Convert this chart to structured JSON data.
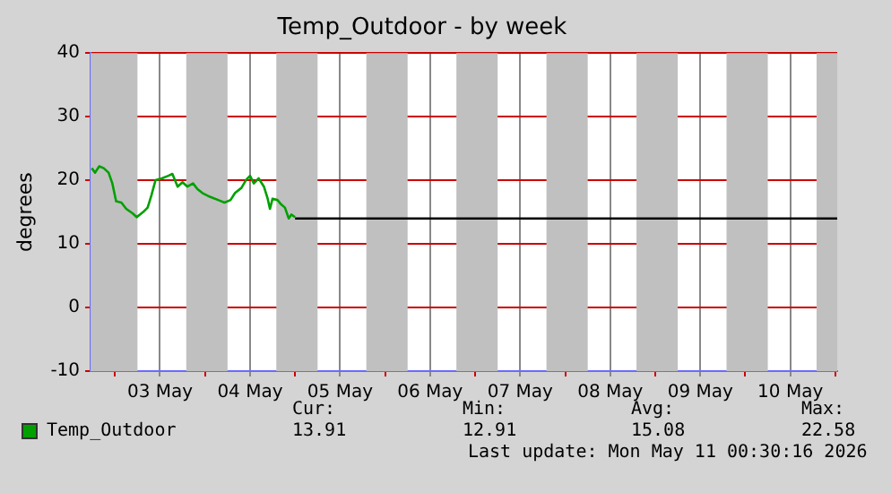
{
  "chart_data": {
    "type": "line",
    "title": "Temp_Outdoor - by week",
    "ylabel": "degrees",
    "x": [
      "2026-05-02T17:48",
      "2026-05-02T18:42",
      "2026-05-02T19:48",
      "2026-05-02T21:00",
      "2026-05-02T22:18",
      "2026-05-02T23:18",
      "2026-05-03T00:18",
      "2026-05-03T01:42",
      "2026-05-03T03:00",
      "2026-05-03T04:42",
      "2026-05-03T05:48",
      "2026-05-03T07:30",
      "2026-05-03T08:42",
      "2026-05-03T09:42",
      "2026-05-03T10:48",
      "2026-05-03T12:30",
      "2026-05-03T14:12",
      "2026-05-03T15:18",
      "2026-05-03T16:42",
      "2026-05-03T18:00",
      "2026-05-03T19:18",
      "2026-05-03T20:48",
      "2026-05-03T22:00",
      "2026-05-03T23:18",
      "2026-05-04T01:18",
      "2026-05-04T03:30",
      "2026-05-04T05:12",
      "2026-05-04T06:48",
      "2026-05-04T08:00",
      "2026-05-04T09:42",
      "2026-05-04T11:00",
      "2026-05-04T12:00",
      "2026-05-04T13:00",
      "2026-05-04T14:18",
      "2026-05-04T15:42",
      "2026-05-04T16:42",
      "2026-05-04T17:18",
      "2026-05-04T18:00",
      "2026-05-04T19:18",
      "2026-05-04T20:18",
      "2026-05-04T21:18",
      "2026-05-04T22:18",
      "2026-05-04T23:00",
      "2026-05-05T00:00"
    ],
    "series": [
      {
        "name": "Temp_Outdoor",
        "color": "#00a000",
        "values": [
          21.9,
          21.2,
          22.2,
          21.9,
          21.2,
          19.5,
          16.7,
          16.5,
          15.5,
          14.8,
          14.2,
          15.0,
          15.7,
          17.6,
          20.0,
          20.3,
          20.7,
          21.0,
          19.0,
          19.7,
          19.0,
          19.5,
          18.6,
          18.0,
          17.4,
          16.9,
          16.5,
          16.9,
          18.0,
          18.8,
          20.1,
          20.7,
          19.5,
          20.3,
          19.0,
          17.1,
          15.5,
          17.1,
          16.9,
          16.2,
          15.7,
          14.0,
          14.6,
          14.2
        ]
      },
      {
        "color": "#000000",
        "x": [
          "2026-05-05T00:00",
          "2026-05-11T00:30"
        ],
        "values": [
          14,
          14
        ]
      }
    ],
    "xlim": [
      "2026-05-02T17:30",
      "2026-05-11T00:30"
    ],
    "xticks": [
      {
        "value": "2026-05-03T00:00",
        "label": null
      },
      {
        "value": "2026-05-03T12:00",
        "label": "03 May"
      },
      {
        "value": "2026-05-04T00:00",
        "label": null
      },
      {
        "value": "2026-05-04T12:00",
        "label": "04 May"
      },
      {
        "value": "2026-05-05T00:00",
        "label": null
      },
      {
        "value": "2026-05-05T12:00",
        "label": "05 May"
      },
      {
        "value": "2026-05-06T00:00",
        "label": null
      },
      {
        "value": "2026-05-06T12:00",
        "label": "06 May"
      },
      {
        "value": "2026-05-07T00:00",
        "label": null
      },
      {
        "value": "2026-05-07T12:00",
        "label": "07 May"
      },
      {
        "value": "2026-05-08T00:00",
        "label": null
      },
      {
        "value": "2026-05-08T12:00",
        "label": "08 May"
      },
      {
        "value": "2026-05-09T00:00",
        "label": null
      },
      {
        "value": "2026-05-09T12:00",
        "label": "09 May"
      },
      {
        "value": "2026-05-10T00:00",
        "label": null
      },
      {
        "value": "2026-05-10T12:00",
        "label": "10 May"
      },
      {
        "value": "2026-05-11T00:00",
        "label": null
      }
    ],
    "ylim": [
      -10,
      40
    ],
    "yticks": [
      -10,
      0,
      10,
      20,
      30,
      40
    ],
    "bands": [
      {
        "axis": "x",
        "from": "2026-05-02T17:30",
        "to": "2026-05-03T06:00",
        "color": "#c0c0c0"
      },
      {
        "axis": "x",
        "from": "2026-05-03T19:00",
        "to": "2026-05-04T06:00",
        "color": "#c0c0c0"
      },
      {
        "axis": "x",
        "from": "2026-05-04T19:00",
        "to": "2026-05-05T06:00",
        "color": "#c0c0c0"
      },
      {
        "axis": "x",
        "from": "2026-05-05T19:00",
        "to": "2026-05-06T06:00",
        "color": "#c0c0c0"
      },
      {
        "axis": "x",
        "from": "2026-05-06T19:00",
        "to": "2026-05-07T06:00",
        "color": "#c0c0c0"
      },
      {
        "axis": "x",
        "from": "2026-05-07T19:00",
        "to": "2026-05-08T06:00",
        "color": "#c0c0c0"
      },
      {
        "axis": "x",
        "from": "2026-05-08T19:00",
        "to": "2026-05-09T06:00",
        "color": "#c0c0c0"
      },
      {
        "axis": "x",
        "from": "2026-05-09T19:00",
        "to": "2026-05-10T06:00",
        "color": "#c0c0c0"
      },
      {
        "axis": "x",
        "from": "2026-05-10T19:00",
        "to": "2026-05-11T00:30",
        "color": "#c0c0c0"
      }
    ],
    "annotations": [
      "Cur:",
      "Min:",
      "Avg:",
      "Max:",
      "13.91",
      "12.91",
      "15.08",
      "22.58",
      "Last update: Mon May 11 00:30:16 2026"
    ],
    "grid": true,
    "legend": "bottom",
    "marker": "none",
    "line_style": "solid"
  }
}
